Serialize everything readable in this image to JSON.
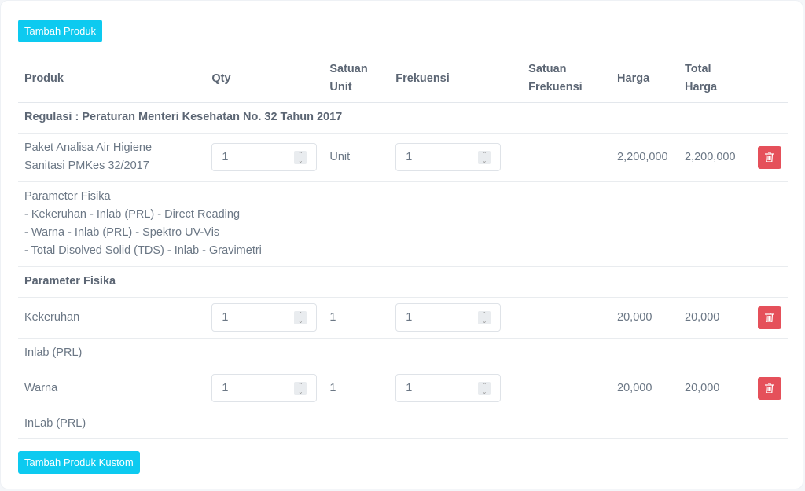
{
  "buttons": {
    "add_product": "Tambah Produk",
    "add_custom": "Tambah Produk Kustom"
  },
  "headers": [
    "Produk",
    "Qty",
    "Satuan Unit",
    "Frekuensi",
    "Satuan Frekuensi",
    "Harga",
    "Total Harga"
  ],
  "regulation": "Regulasi : Peraturan Menteri Kesehatan No. 32 Tahun 2017",
  "package": {
    "name_line1": "Paket Analisa Air Higiene",
    "name_line2": "Sanitasi PMKes 32/2017",
    "qty": "1",
    "unit": "Unit",
    "freq": "1",
    "freq_unit": "",
    "price": "2,200,000",
    "total": "2,200,000",
    "desc": [
      "Parameter Fisika",
      "- Kekeruhan - Inlab (PRL) - Direct Reading",
      "- Warna - Inlab (PRL) - Spektro UV-Vis",
      "- Total Disolved Solid (TDS) - Inlab - Gravimetri"
    ]
  },
  "group": "Parameter Fisika",
  "items": [
    {
      "name": "Kekeruhan",
      "qty": "1",
      "unit": "1",
      "freq": "1",
      "price": "20,000",
      "total": "20,000",
      "note": "Inlab (PRL)"
    },
    {
      "name": "Warna",
      "qty": "1",
      "unit": "1",
      "freq": "1",
      "price": "20,000",
      "total": "20,000",
      "note": "InLab (PRL)"
    }
  ],
  "colors": {
    "info": "#0dcaf0",
    "danger": "#e5505a"
  },
  "icons": {
    "delete": "trash-icon",
    "spinner": "stepper-arrows-icon"
  }
}
